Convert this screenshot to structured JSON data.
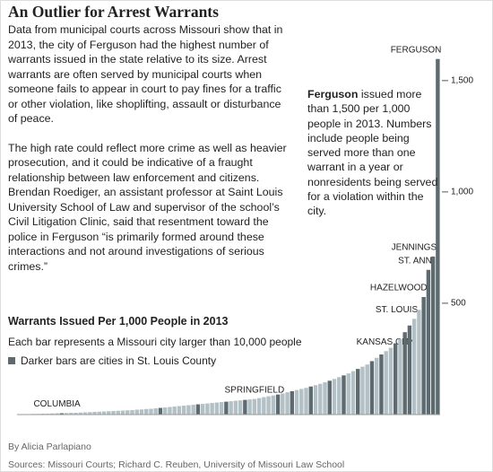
{
  "title": "An Outlier for Arrest Warrants",
  "paragraphs": [
    "Data from municipal courts across Missouri show that in 2013, the city of Ferguson had the highest number of warrants issued in the state relative to its size. Arrest warrants are often served by municipal courts when someone fails to appear in court to pay fines for a traffic or other violation, like shoplifting, assault or disturbance of peace.",
    "The high rate could reflect more crime as well as heavier prosecution, and it could be indicative of a fraught relationship between law enforcement and citizens. Brendan Roediger, an assistant professor at Saint Louis University School of Law and supervisor of the school’s Civil Litigation Clinic, said that resentment toward the police in Ferguson “is primarily formed around these interactions and not around investigations of serious crimes.”"
  ],
  "byline": "By Alicia Parlapiano",
  "sources": "Sources: Missouri Courts; Richard C. Reuben, University of Missouri Law School",
  "chart_data": {
    "type": "bar",
    "title": "Warrants Issued Per 1,000 People in 2013",
    "subtitle": "Each bar represents a Missouri city larger than 10,000 people",
    "legend": "Darker bars are cities in St. Louis County",
    "legend_color": "#5d6b70",
    "annotation": {
      "bold": "Ferguson",
      "text": " issued more than 1,500 per 1,000 people in 2013. Numbers include people being served more than one warrant in a year or nonresidents being served for a violation within the city."
    },
    "categories": [
      null,
      null,
      null,
      null,
      null,
      null,
      null,
      null,
      "COLUMBIA",
      null,
      null,
      null,
      null,
      null,
      null,
      null,
      null,
      null,
      null,
      null,
      null,
      null,
      null,
      null,
      null,
      null,
      null,
      null,
      null,
      null,
      null,
      null,
      null,
      null,
      null,
      null,
      null,
      null,
      null,
      null,
      null,
      null,
      null,
      null,
      null,
      null,
      null,
      null,
      null,
      null,
      "SPRINGFIELD",
      null,
      null,
      null,
      null,
      null,
      null,
      null,
      null,
      null,
      null,
      null,
      null,
      null,
      null,
      null,
      null,
      null,
      null,
      null,
      null,
      null,
      null,
      null,
      null,
      null,
      null,
      null,
      "KANSAS CITY",
      null,
      null,
      null,
      null,
      null,
      "ST. LOUIS",
      null,
      "HAZELWOOD",
      "ST. ANN",
      "JENNINGS",
      "FERGUSON"
    ],
    "values": [
      1,
      2,
      2,
      3,
      3,
      4,
      4,
      5,
      6,
      6,
      7,
      8,
      8,
      9,
      10,
      11,
      12,
      13,
      14,
      15,
      16,
      17,
      18,
      19,
      20,
      22,
      23,
      25,
      26,
      28,
      30,
      32,
      34,
      36,
      38,
      40,
      42,
      44,
      46,
      48,
      50,
      52,
      54,
      56,
      58,
      60,
      62,
      64,
      66,
      68,
      70,
      74,
      78,
      82,
      86,
      90,
      95,
      100,
      105,
      110,
      115,
      120,
      126,
      132,
      138,
      145,
      152,
      160,
      168,
      176,
      185,
      195,
      205,
      215,
      225,
      240,
      255,
      270,
      285,
      300,
      320,
      340,
      370,
      400,
      430,
      470,
      528,
      650,
      710,
      1597
    ],
    "colors": [
      "#b3c1c6",
      "#b3c1c6",
      "#b3c1c6",
      "#b3c1c6",
      "#b3c1c6",
      "#b3c1c6",
      "#b3c1c6",
      "#b3c1c6",
      "#b3c1c6",
      "#5d6b70",
      "#b3c1c6",
      "#b3c1c6",
      "#b3c1c6",
      "#b3c1c6",
      "#b3c1c6",
      "#b3c1c6",
      "#b3c1c6",
      "#b3c1c6",
      "#b3c1c6",
      "#b3c1c6",
      "#b3c1c6",
      "#b3c1c6",
      "#b3c1c6",
      "#b3c1c6",
      "#b3c1c6",
      "#b3c1c6",
      "#b3c1c6",
      "#b3c1c6",
      "#b3c1c6",
      "#b3c1c6",
      "#5d6b70",
      "#b3c1c6",
      "#b3c1c6",
      "#b3c1c6",
      "#b3c1c6",
      "#b3c1c6",
      "#b3c1c6",
      "#b3c1c6",
      "#5d6b70",
      "#b3c1c6",
      "#b3c1c6",
      "#b3c1c6",
      "#b3c1c6",
      "#b3c1c6",
      "#5d6b70",
      "#b3c1c6",
      "#b3c1c6",
      "#b3c1c6",
      "#5d6b70",
      "#b3c1c6",
      "#b3c1c6",
      "#b3c1c6",
      "#b3c1c6",
      "#b3c1c6",
      "#b3c1c6",
      "#5d6b70",
      "#b3c1c6",
      "#b3c1c6",
      "#5d6b70",
      "#b3c1c6",
      "#b3c1c6",
      "#b3c1c6",
      "#5d6b70",
      "#b3c1c6",
      "#b3c1c6",
      "#b3c1c6",
      "#5d6b70",
      "#b3c1c6",
      "#b3c1c6",
      "#5d6b70",
      "#b3c1c6",
      "#b3c1c6",
      "#5d6b70",
      "#b3c1c6",
      "#b3c1c6",
      "#5d6b70",
      "#b3c1c6",
      "#5d6b70",
      "#b3c1c6",
      "#b3c1c6",
      "#5d6b70",
      "#b3c1c6",
      "#5d6b70",
      "#5d6b70",
      "#b3c1c6",
      "#b3c1c6",
      "#5d6b70",
      "#5d6b70",
      "#5d6b70",
      "#5d6b70"
    ],
    "ylim": [
      0,
      1600
    ],
    "yticks": [
      {
        "value": 500,
        "label": "500"
      },
      {
        "value": 1000,
        "label": "1,000"
      },
      {
        "value": 1500,
        "label": "1,500"
      }
    ]
  }
}
